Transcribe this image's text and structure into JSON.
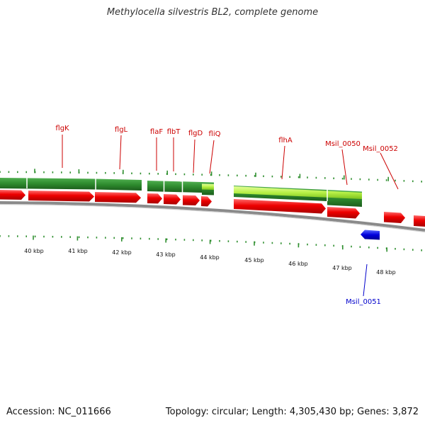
{
  "title": "Methylocella silvestris BL2, complete genome",
  "footer": {
    "accession": "Accession: NC_011666",
    "summary": "Topology: circular; Length: 4,305,430 bp; Genes: 3,872"
  },
  "colors": {
    "gene_forward": "#ee0000",
    "gene_reverse": "#0000dd",
    "cds_dark": "#2e8b2e",
    "cds_light": "#b6f046",
    "label_forward": "#cc0000",
    "label_reverse": "#0000cc",
    "tick": "#2f8f2f",
    "backbone": "#8a8a8a"
  },
  "scale": {
    "ticks": [
      "40 kbp",
      "41 kbp",
      "42 kbp",
      "43 kbp",
      "44 kbp",
      "45 kbp",
      "46 kbp",
      "47 kbp",
      "48 kbp"
    ]
  },
  "gene_labels": {
    "forward": [
      "flgK",
      "flgL",
      "flaF",
      "flbT",
      "flgD",
      "fliQ",
      "flhA",
      "Msil_0050",
      "Msil_0052"
    ],
    "reverse": [
      "Msil_0051"
    ]
  },
  "icons": [
    "forward-gene-arrow-icon",
    "reverse-gene-arrow-icon"
  ]
}
